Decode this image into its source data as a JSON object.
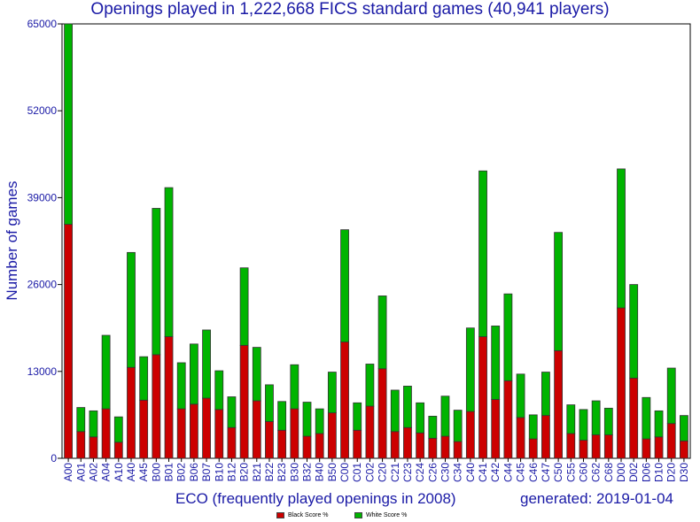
{
  "page": {
    "title": "Openings played in 1,222,668 FICS standard games (40,941 players)",
    "xlabel": "ECO (frequently played openings in 2008)",
    "generated": "generated: 2019-01-04"
  },
  "chart_data": {
    "type": "bar",
    "stacked": true,
    "title": "Openings played in 1,222,668 FICS standard games (40,941 players)",
    "xlabel": "ECO (frequently played openings in 2008)",
    "ylabel": "Number of games",
    "ylim": [
      0,
      65000
    ],
    "yticks": [
      0,
      13000,
      26000,
      39000,
      52000,
      65000
    ],
    "grid": false,
    "legend_position": "bottom-center",
    "categories": [
      "A00",
      "A01",
      "A02",
      "A04",
      "A10",
      "A40",
      "A45",
      "B00",
      "B01",
      "B02",
      "B06",
      "B07",
      "B10",
      "B12",
      "B20",
      "B21",
      "B22",
      "B23",
      "B30",
      "B32",
      "B40",
      "B50",
      "C00",
      "C01",
      "C02",
      "C20",
      "C21",
      "C23",
      "C24",
      "C26",
      "C30",
      "C34",
      "C40",
      "C41",
      "C42",
      "C44",
      "C45",
      "C46",
      "C47",
      "C50",
      "C55",
      "C60",
      "C62",
      "C68",
      "D00",
      "D02",
      "D06",
      "D10",
      "D20",
      "D30"
    ],
    "series": [
      {
        "name": "Black Score %",
        "color": "#cc0000",
        "values": [
          35000,
          4000,
          3200,
          7400,
          2400,
          13600,
          8700,
          15500,
          18200,
          7400,
          8100,
          9000,
          7300,
          4600,
          16900,
          8600,
          5500,
          4200,
          7400,
          3300,
          3700,
          6800,
          17400,
          4200,
          7800,
          13400,
          4000,
          4600,
          3800,
          3000,
          3300,
          2500,
          7000,
          18200,
          8800,
          11600,
          6100,
          2900,
          6400,
          16100,
          3700,
          2700,
          3500,
          3500,
          22500,
          12000,
          2900,
          3200,
          5200,
          2600
        ]
      },
      {
        "name": "White Score %",
        "color": "#00b400",
        "values": [
          30000,
          3600,
          3900,
          11000,
          3800,
          17200,
          6500,
          21900,
          22300,
          6900,
          9000,
          10200,
          5800,
          4600,
          11600,
          8000,
          5500,
          4300,
          6600,
          5100,
          3700,
          6100,
          16800,
          4100,
          6300,
          10900,
          6200,
          6200,
          4500,
          3300,
          6000,
          4700,
          12500,
          24800,
          11000,
          13000,
          6500,
          3600,
          6500,
          17700,
          4300,
          4600,
          5100,
          4000,
          20800,
          14000,
          6200,
          3900,
          8300,
          3800
        ]
      }
    ]
  }
}
